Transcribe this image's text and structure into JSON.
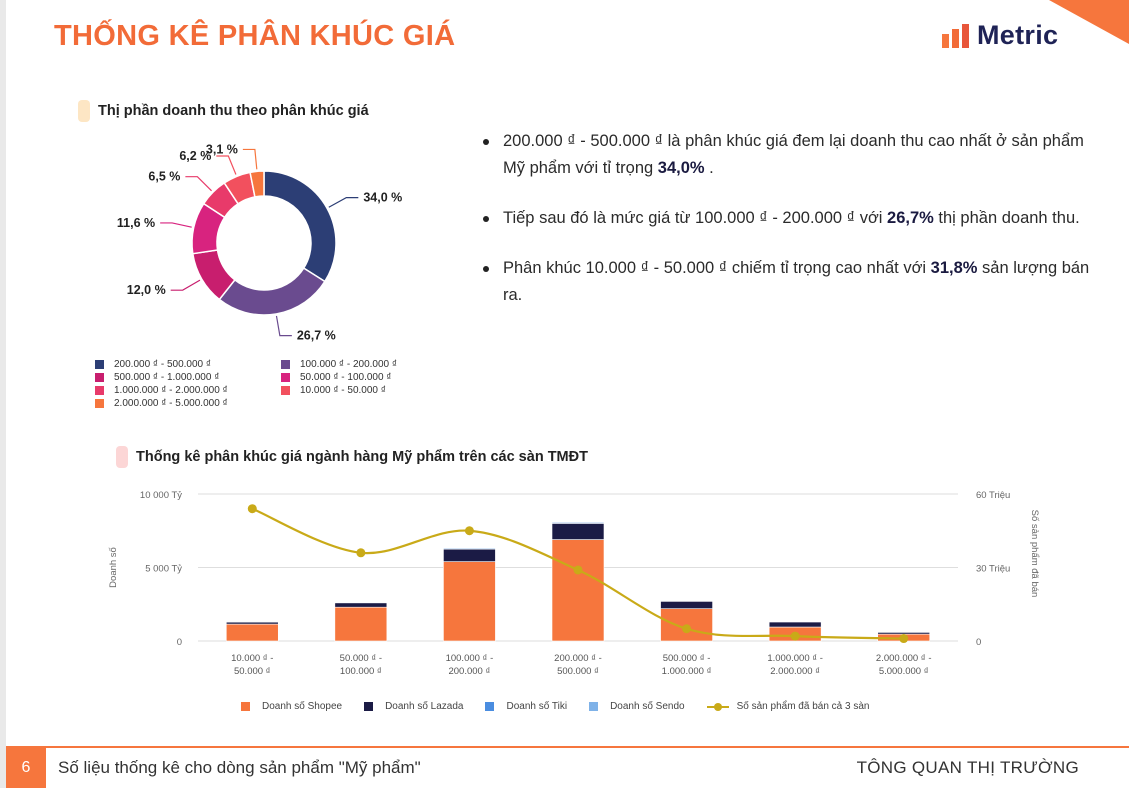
{
  "header": {
    "title": "THỐNG KÊ PHÂN KHÚC GIÁ",
    "brand": "Metric",
    "brand_colors": [
      "#f6763d",
      "#f26b38",
      "#e8563a"
    ]
  },
  "donut_section": {
    "title": "Thị phần doanh thu theo phân khúc giá",
    "pill_color": "#fde6c4"
  },
  "bullets": [
    {
      "pre": "200.000 ₫ - 500.000 ₫ là phân khúc giá đem lại doanh thu cao nhất ở sản phẩm Mỹ phẩm với tỉ trọng ",
      "bold": "34,0%",
      "post": " ."
    },
    {
      "pre": "Tiếp sau đó là mức giá từ 100.000 ₫ - 200.000 ₫ với ",
      "bold": "26,7%",
      "post": " thị phần doanh thu."
    },
    {
      "pre": "Phân khúc 10.000 ₫ - 50.000 ₫ chiếm tỉ trọng cao nhất với ",
      "bold": "31,8%",
      "post": " sản lượng bán ra."
    }
  ],
  "bar_section": {
    "title": "Thống kê phân khúc giá ngành hàng Mỹ phẩm trên các sàn TMĐT",
    "pill_color": "#fcd6d6"
  },
  "footer": {
    "page_number": "6",
    "left_text": "Số liệu thống kê cho dòng sản phẩm \"Mỹ phẩm\"",
    "right_text": "TÔNG QUAN THỊ TRƯỜNG"
  },
  "chart_data": [
    {
      "type": "pie",
      "title": "Thị phần doanh thu theo phân khúc giá",
      "categories": [
        "200.000 ₫ - 500.000 ₫",
        "100.000 ₫ - 200.000 ₫",
        "500.000 ₫ - 1.000.000 ₫",
        "50.000 ₫ - 100.000 ₫",
        "1.000.000 ₫ - 2.000.000 ₫",
        "10.000 ₫ - 50.000 ₫",
        "2.000.000 ₫ - 5.000.000 ₫"
      ],
      "values": [
        34.0,
        26.7,
        12.0,
        11.6,
        6.5,
        6.2,
        3.1
      ],
      "value_labels": [
        "34,0 %",
        "26,7 %",
        "12,0 %",
        "11,6 %",
        "6,5 %",
        "6,2 %",
        "3,1 %"
      ],
      "colors": [
        "#2c3e75",
        "#6a4b8f",
        "#c81e6e",
        "#d8237f",
        "#e83a6a",
        "#f2505e",
        "#f6763d"
      ],
      "legend_order": [
        0,
        1,
        2,
        3,
        4,
        5,
        6
      ],
      "donut": true
    },
    {
      "type": "bar",
      "stacked": true,
      "title": "Thống kê phân khúc giá ngành hàng Mỹ phẩm trên các sàn TMĐT",
      "categories": [
        [
          "10.000 ₫ -",
          "50.000 ₫"
        ],
        [
          "50.000 ₫ -",
          "100.000 ₫"
        ],
        [
          "100.000 ₫ -",
          "200.000 ₫"
        ],
        [
          "200.000 ₫ -",
          "500.000 ₫"
        ],
        [
          "500.000 ₫ -",
          "1.000.000 ₫"
        ],
        [
          "1.000.000 ₫ -",
          "2.000.000 ₫"
        ],
        [
          "2.000.000 ₫ -",
          "5.000.000 ₫"
        ]
      ],
      "ylabel": "Doanh số",
      "y2label": "Số sản phẩm đã bán",
      "ylim": [
        0,
        10000
      ],
      "y_ticks": [
        "0",
        "5 000 Tỷ",
        "10 000 Tỷ"
      ],
      "y_tick_values": [
        0,
        5000,
        10000
      ],
      "y2lim": [
        0,
        60
      ],
      "y2_ticks": [
        "0",
        "30 Triệu",
        "60 Triệu"
      ],
      "y2_tick_values": [
        0,
        30,
        60
      ],
      "grid": true,
      "legend_position": "bottom",
      "series": [
        {
          "name": "Doanh số Shopee",
          "color": "#f6763d",
          "values": [
            1150,
            2300,
            5400,
            6900,
            2200,
            950,
            470
          ],
          "axis": "left"
        },
        {
          "name": "Doanh số Lazada",
          "color": "#1b1b45",
          "values": [
            150,
            300,
            850,
            1100,
            500,
            350,
            130
          ],
          "axis": "left"
        },
        {
          "name": "Doanh số Tiki",
          "color": "#4a8de0",
          "values": [
            20,
            30,
            60,
            70,
            40,
            30,
            20
          ],
          "axis": "left"
        },
        {
          "name": "Doanh số Sendo",
          "color": "#7fb2e8",
          "values": [
            10,
            15,
            30,
            40,
            20,
            15,
            10
          ],
          "axis": "left"
        },
        {
          "name": "Số sản phẩm đã bán cả 3 sàn",
          "color": "#c9aa18",
          "type": "line",
          "values": [
            54,
            36,
            45,
            29,
            5,
            2,
            1
          ],
          "axis": "right"
        }
      ]
    }
  ]
}
